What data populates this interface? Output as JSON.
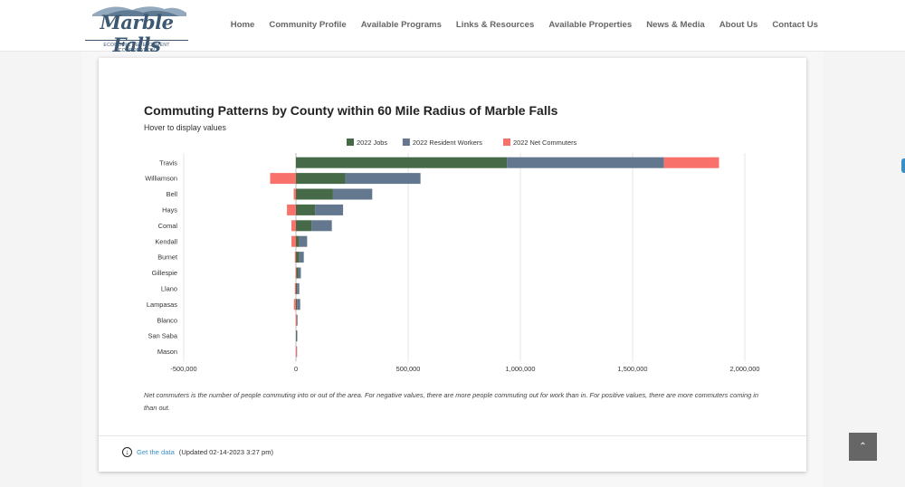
{
  "site": {
    "logo_text": "Marble Falls",
    "logo_subtitle": "ECONOMIC DEVELOPMENT CORPORATION",
    "brand_color": "#3d5872"
  },
  "nav": {
    "items": [
      {
        "label": "Home"
      },
      {
        "label": "Community Profile"
      },
      {
        "label": "Available Programs"
      },
      {
        "label": "Links & Resources"
      },
      {
        "label": "Available Properties"
      },
      {
        "label": "News & Media"
      },
      {
        "label": "About Us"
      },
      {
        "label": "Contact Us"
      }
    ]
  },
  "card": {
    "hint": "Hover to display values",
    "footnote": "Net commuters is the number of people commuting into or out of the area. For negative values, there are more people commuting out for work than in. For positive values, there are more commuters coming in than out.",
    "get_data_label": "Get the data",
    "updated": "(Updated 02-14-2023 3:27 pm)"
  },
  "chart_data": {
    "type": "bar",
    "orientation": "horizontal",
    "stacked": true,
    "title": "Commuting Patterns by County within 60 Mile Radius of Marble Falls",
    "xlim": [
      -500000,
      2000000
    ],
    "xticks": [
      -500000,
      0,
      500000,
      1000000,
      1500000,
      2000000
    ],
    "xtick_labels": [
      "-500,000",
      "0",
      "500,000",
      "1,000,000",
      "1,500,000",
      "2,000,000"
    ],
    "legend_position": "top",
    "grid": true,
    "categories": [
      "Travis",
      "Williamson",
      "Bell",
      "Hays",
      "Comal",
      "Kendall",
      "Burnet",
      "Gillespie",
      "Llano",
      "Lampasas",
      "Blanco",
      "San Saba",
      "Mason"
    ],
    "series": [
      {
        "name": "2022 Jobs",
        "color": "#466a47",
        "values": [
          940000,
          220000,
          165000,
          85000,
          70000,
          15000,
          15000,
          10000,
          5000,
          5000,
          3000,
          2000,
          1000
        ]
      },
      {
        "name": "2022 Resident Workers",
        "color": "#63788e",
        "values": [
          700000,
          335000,
          175000,
          125000,
          90000,
          35000,
          20000,
          12000,
          10000,
          14000,
          4000,
          2000,
          1500
        ]
      },
      {
        "name": "2022 Net Commuters",
        "color": "#f8726b",
        "values": [
          245000,
          -115000,
          -10000,
          -40000,
          -20000,
          -20000,
          -5000,
          -2000,
          -5000,
          -9000,
          -1000,
          0,
          -500
        ]
      }
    ]
  }
}
